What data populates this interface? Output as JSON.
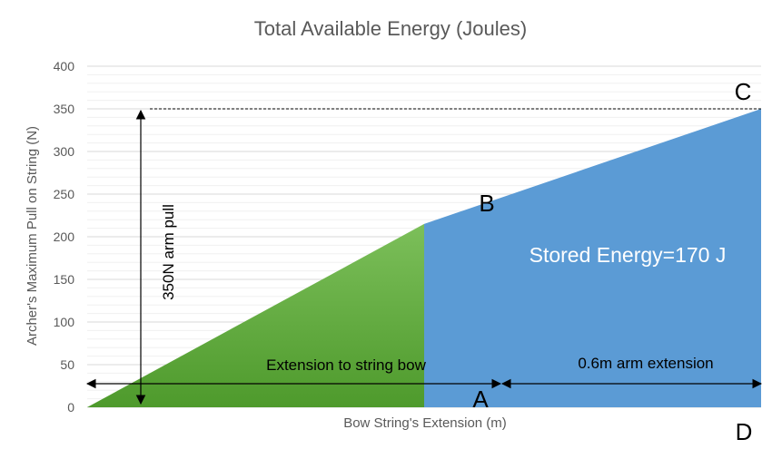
{
  "chart_data": {
    "type": "area",
    "title": "Total Available Energy (Joules)",
    "xlabel": "Bow String's Extension (m)",
    "ylabel": "Archer's Maximum Pull on String (N)",
    "ylim": [
      0,
      400
    ],
    "yticks": [
      0,
      50,
      100,
      150,
      200,
      250,
      300,
      350,
      400
    ],
    "grid": "horizontal",
    "regions": [
      {
        "name": "green-triangle",
        "color": "#5a9e3a",
        "points": [
          [
            0,
            0
          ],
          [
            0.6,
            215
          ],
          [
            0.6,
            0
          ]
        ]
      },
      {
        "name": "blue-trapezoid",
        "color": "#5b9bd5",
        "points": [
          [
            0.6,
            0
          ],
          [
            0.6,
            215
          ],
          [
            1.2,
            350
          ],
          [
            1.2,
            0
          ]
        ]
      }
    ],
    "points": {
      "A": [
        0.6,
        0
      ],
      "B": [
        0.6,
        215
      ],
      "C": [
        1.2,
        350
      ],
      "D": [
        1.2,
        0
      ]
    },
    "annotations": {
      "point_a": "A",
      "point_b": "B",
      "point_c": "C",
      "point_d": "D",
      "arm_pull": "350N arm pull",
      "extension_string": "Extension to string bow",
      "arm_extension": "0.6m arm extension",
      "stored_energy": "Stored Energy=170 J"
    }
  }
}
